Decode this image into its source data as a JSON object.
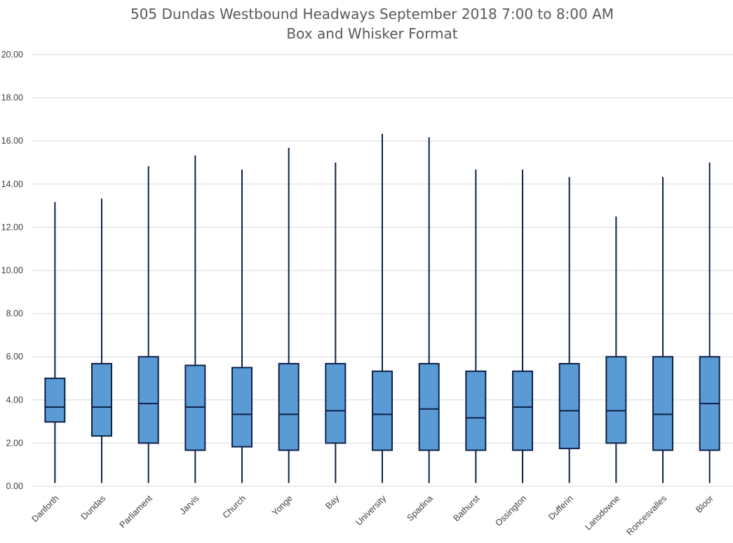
{
  "chart_data": {
    "type": "boxplot",
    "title": "505 Dundas Westbound Headways September 2018 7:00 to 8:00 AM",
    "subtitle": "Box and Whisker Format",
    "ylim": [
      0,
      20
    ],
    "yticks": [
      "0.00",
      "2.00",
      "4.00",
      "6.00",
      "8.00",
      "10.00",
      "12.00",
      "14.00",
      "16.00",
      "18.00",
      "20.00"
    ],
    "grid": true,
    "colors": {
      "box_fill": "#5b9bd5",
      "box_stroke": "#0d2149",
      "whisker": "#0d2149",
      "grid": "#d9d9d9"
    },
    "categories": [
      "Danforth",
      "Dundas",
      "Parliament",
      "Jarvis",
      "Church",
      "Yonge",
      "Bay",
      "University",
      "Spadina",
      "Bathurst",
      "Ossington",
      "Dufferin",
      "Lansdowne",
      "Roncesvalles",
      "Bloor"
    ],
    "boxes": [
      {
        "min": 0.15,
        "q1": 2.98,
        "median": 3.67,
        "q3": 5.0,
        "max": 13.17
      },
      {
        "min": 0.15,
        "q1": 2.33,
        "median": 3.67,
        "q3": 5.68,
        "max": 13.33
      },
      {
        "min": 0.15,
        "q1": 2.0,
        "median": 3.83,
        "q3": 6.0,
        "max": 14.83
      },
      {
        "min": 0.15,
        "q1": 1.67,
        "median": 3.67,
        "q3": 5.6,
        "max": 15.33
      },
      {
        "min": 0.15,
        "q1": 1.83,
        "median": 3.33,
        "q3": 5.5,
        "max": 14.67
      },
      {
        "min": 0.15,
        "q1": 1.67,
        "median": 3.33,
        "q3": 5.68,
        "max": 15.68
      },
      {
        "min": 0.15,
        "q1": 2.0,
        "median": 3.5,
        "q3": 5.68,
        "max": 15.0
      },
      {
        "min": 0.15,
        "q1": 1.67,
        "median": 3.33,
        "q3": 5.33,
        "max": 16.33
      },
      {
        "min": 0.15,
        "q1": 1.67,
        "median": 3.58,
        "q3": 5.68,
        "max": 16.17
      },
      {
        "min": 0.15,
        "q1": 1.67,
        "median": 3.17,
        "q3": 5.33,
        "max": 14.67
      },
      {
        "min": 0.15,
        "q1": 1.67,
        "median": 3.67,
        "q3": 5.33,
        "max": 14.67
      },
      {
        "min": 0.15,
        "q1": 1.75,
        "median": 3.5,
        "q3": 5.68,
        "max": 14.33
      },
      {
        "min": 0.15,
        "q1": 2.0,
        "median": 3.5,
        "q3": 6.0,
        "max": 12.5
      },
      {
        "min": 0.15,
        "q1": 1.67,
        "median": 3.33,
        "q3": 6.0,
        "max": 14.33
      },
      {
        "min": 0.15,
        "q1": 1.67,
        "median": 3.83,
        "q3": 6.0,
        "max": 15.0
      }
    ]
  }
}
